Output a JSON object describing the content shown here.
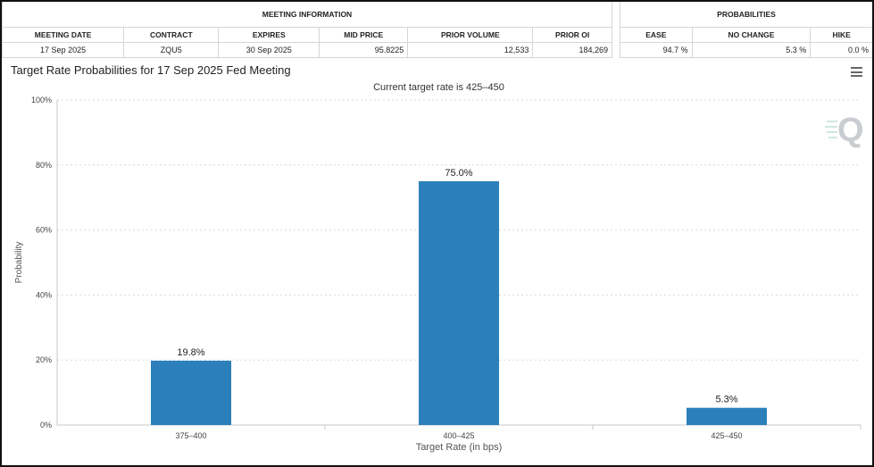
{
  "meeting_info": {
    "group_label": "MEETING INFORMATION",
    "headers": [
      "MEETING DATE",
      "CONTRACT",
      "EXPIRES",
      "MID PRICE",
      "PRIOR VOLUME",
      "PRIOR OI"
    ],
    "row": [
      "17 Sep 2025",
      "ZQU5",
      "30 Sep 2025",
      "95.8225",
      "12,533",
      "184,269"
    ]
  },
  "probabilities": {
    "group_label": "PROBABILITIES",
    "headers": [
      "EASE",
      "NO CHANGE",
      "HIKE"
    ],
    "row": [
      "94.7 %",
      "5.3 %",
      "0.0 %"
    ]
  },
  "chart_data": {
    "type": "bar",
    "title": "Target Rate Probabilities for 17 Sep 2025 Fed Meeting",
    "subtitle": "Current target rate is 425–450",
    "xlabel": "Target Rate (in bps)",
    "ylabel": "Probability",
    "categories": [
      "375–400",
      "400–425",
      "425–450"
    ],
    "values": [
      19.8,
      75.0,
      5.3
    ],
    "data_labels": [
      "19.8%",
      "75.0%",
      "5.3%"
    ],
    "ylim": [
      0,
      100
    ],
    "yticks": [
      "0%",
      "20%",
      "40%",
      "60%",
      "80%",
      "100%"
    ],
    "ytick_values": [
      0,
      20,
      40,
      60,
      80,
      100
    ],
    "bar_color": "#2b7fba",
    "grid": true,
    "legend": "none"
  }
}
